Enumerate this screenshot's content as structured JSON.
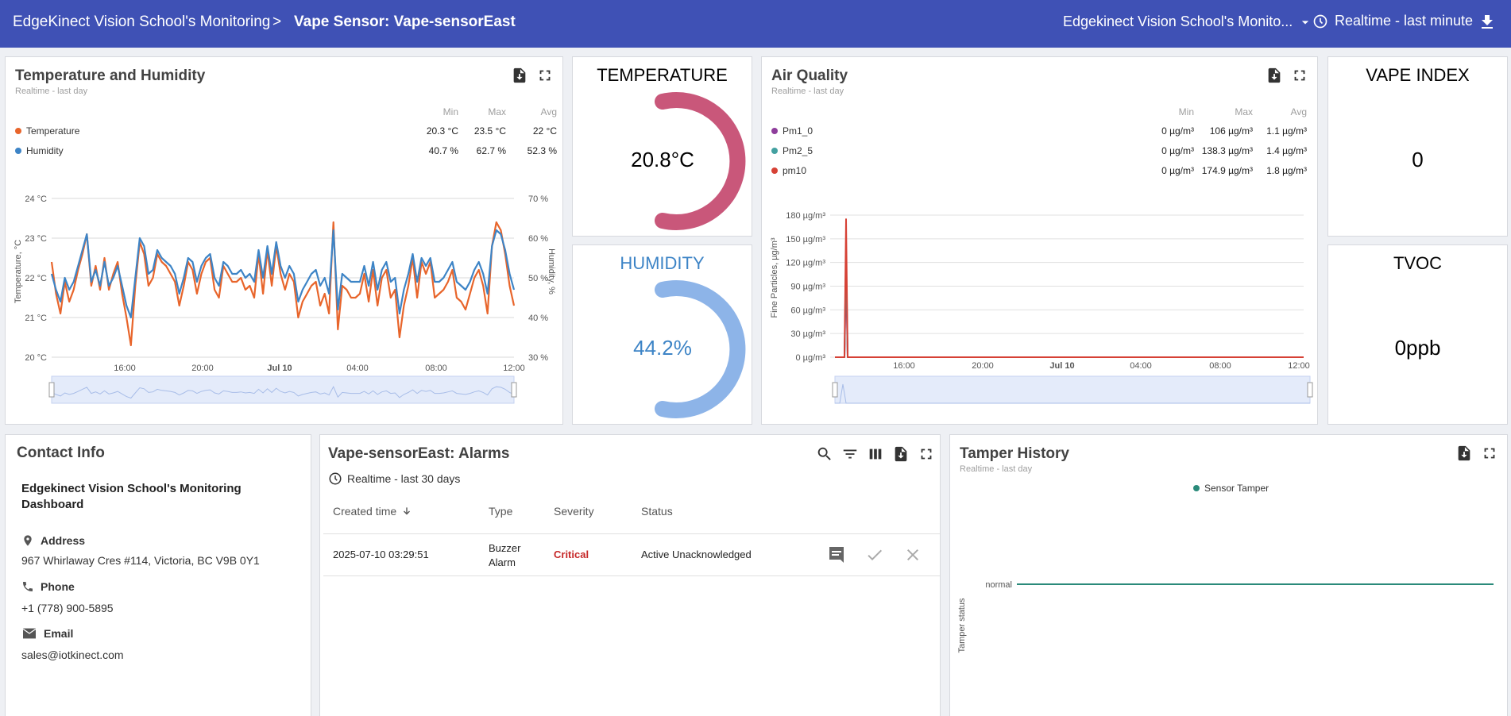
{
  "header": {
    "crumb_root": "EdgeKinect Vision School's Monitoring",
    "crumb_sep": ">",
    "crumb_current": "Vape Sensor: Vape-sensorEast",
    "dashboard_select": "Edgekinect Vision School's Monito...",
    "time_window": "Realtime - last minute"
  },
  "temp_humidity": {
    "title": "Temperature and Humidity",
    "subtitle": "Realtime - last day",
    "legend_headers": {
      "min": "Min",
      "max": "Max",
      "avg": "Avg"
    },
    "legend": [
      {
        "name": "Temperature",
        "color": "#e8652b",
        "min": "20.3 °C",
        "max": "23.5 °C",
        "avg": "22 °C"
      },
      {
        "name": "Humidity",
        "color": "#3d84c6",
        "min": "40.7 %",
        "max": "62.7 %",
        "avg": "52.3 %"
      }
    ]
  },
  "temp_gauge": {
    "title": "TEMPERATURE",
    "value": "20.8°C",
    "color": "#c9577a"
  },
  "humidity_gauge": {
    "title": "HUMIDITY",
    "value": "44.2%",
    "color": "#8db4e8",
    "title_color": "#3d84c6"
  },
  "air_quality": {
    "title": "Air Quality",
    "subtitle": "Realtime - last day",
    "legend_headers": {
      "min": "Min",
      "max": "Max",
      "avg": "Avg"
    },
    "legend": [
      {
        "name": "Pm1_0",
        "color": "#8e3d9b",
        "min": "0 µg/m³",
        "max": "106 µg/m³",
        "avg": "1.1 µg/m³"
      },
      {
        "name": "Pm2_5",
        "color": "#43a0a0",
        "min": "0 µg/m³",
        "max": "138.3 µg/m³",
        "avg": "1.4 µg/m³"
      },
      {
        "name": "pm10",
        "color": "#d64135",
        "min": "0 µg/m³",
        "max": "174.9 µg/m³",
        "avg": "1.8 µg/m³"
      }
    ]
  },
  "vape_index": {
    "title": "VAPE INDEX",
    "value": "0"
  },
  "tvoc": {
    "title": "TVOC",
    "value": "0ppb"
  },
  "contact": {
    "title": "Contact Info",
    "org": "Edgekinect Vision School's Monitoring Dashboard",
    "address_label": "Address",
    "address": "967 Whirlaway Cres #114, Victoria, BC V9B 0Y1",
    "phone_label": "Phone",
    "phone": "+1 (778) 900-5895",
    "email_label": "Email",
    "email": "sales@iotkinect.com"
  },
  "alarms": {
    "title": "Vape-sensorEast: Alarms",
    "time_window": "Realtime - last 30 days",
    "columns": {
      "created": "Created time",
      "type": "Type",
      "severity": "Severity",
      "status": "Status"
    },
    "rows": [
      {
        "created": "2025-07-10 03:29:51",
        "type_line1": "Buzzer",
        "type_line2": "Alarm",
        "severity": "Critical",
        "status": "Active Unacknowledged"
      }
    ]
  },
  "tamper": {
    "title": "Tamper History",
    "subtitle": "Realtime - last day",
    "legend": "Sensor Tamper",
    "legend_color": "#2a8a7a",
    "y_label": "Tamper status",
    "y_tick": "normal"
  },
  "chart_data": [
    {
      "type": "line",
      "title": "Temperature and Humidity",
      "x_ticks": [
        "16:00",
        "20:00",
        "Jul 10",
        "04:00",
        "08:00",
        "12:00"
      ],
      "ylabel": "Temperature, °C",
      "ylabel_right": "Humidity, %",
      "y_ticks": [
        "24 °C",
        "23 °C",
        "22 °C",
        "21 °C",
        "20 °C"
      ],
      "y_ticks_right": [
        "70 %",
        "60 %",
        "50 %",
        "40 %",
        "30 %"
      ],
      "ylim": [
        20,
        24
      ],
      "ylim_right": [
        30,
        70
      ],
      "series": [
        {
          "name": "Temperature",
          "color": "#e8652b",
          "axis": "left",
          "values": [
            22.4,
            21.6,
            21.1,
            21.9,
            21.4,
            21.7,
            22.2,
            22.6,
            23.1,
            21.8,
            22.3,
            21.7,
            22.5,
            21.7,
            22.1,
            22.4,
            21.6,
            21.0,
            20.3,
            21.8,
            22.9,
            22.6,
            21.8,
            22.0,
            22.6,
            22.4,
            22.3,
            22.1,
            21.9,
            21.3,
            21.8,
            22.4,
            22.2,
            21.6,
            22.1,
            22.4,
            22.5,
            21.7,
            21.5,
            22.3,
            22.1,
            21.9,
            21.9,
            22.0,
            21.7,
            21.8,
            21.5,
            22.6,
            21.6,
            22.7,
            21.8,
            22.8,
            22.1,
            21.7,
            22.1,
            21.9,
            21.0,
            21.4,
            21.6,
            21.8,
            21.9,
            21.3,
            21.6,
            21.1,
            23.4,
            20.7,
            21.8,
            21.7,
            21.5,
            21.5,
            21.6,
            22.1,
            21.4,
            22.2,
            21.3,
            22.0,
            22.2,
            21.5,
            21.7,
            20.5,
            21.3,
            21.8,
            22.5,
            21.5,
            22.4,
            22.1,
            22.4,
            21.5,
            21.6,
            21.7,
            21.9,
            22.2,
            21.5,
            21.4,
            21.2,
            21.6,
            22.0,
            22.2,
            21.8,
            21.1,
            22.8,
            23.4,
            23.2,
            22.6,
            21.8,
            21.3
          ]
        },
        {
          "name": "Humidity",
          "color": "#3d84c6",
          "axis": "right",
          "values": [
            51,
            47,
            44,
            50,
            47,
            49,
            53,
            57,
            61,
            49,
            52,
            48,
            54,
            48,
            50,
            53,
            48,
            43,
            40,
            50,
            60,
            58,
            51,
            52,
            57,
            55,
            54,
            53,
            51,
            46,
            50,
            55,
            54,
            49,
            53,
            55,
            56,
            50,
            48,
            54,
            53,
            51,
            51,
            52,
            50,
            51,
            49,
            57,
            50,
            58,
            51,
            59,
            53,
            50,
            53,
            51,
            44,
            47,
            49,
            51,
            52,
            48,
            50,
            46,
            62,
            42,
            51,
            50,
            49,
            49,
            49,
            53,
            48,
            54,
            47,
            52,
            54,
            49,
            50,
            41,
            47,
            51,
            56,
            49,
            55,
            53,
            55,
            49,
            49,
            50,
            52,
            54,
            49,
            48,
            47,
            49,
            52,
            54,
            51,
            46,
            58,
            62,
            61,
            57,
            51,
            47
          ]
        }
      ]
    },
    {
      "type": "line",
      "title": "Air Quality",
      "x_ticks": [
        "16:00",
        "20:00",
        "Jul 10",
        "04:00",
        "08:00",
        "12:00"
      ],
      "ylabel": "Fine Particles, µg/m³",
      "y_ticks": [
        "180 µg/m³",
        "150 µg/m³",
        "120 µg/m³",
        "90 µg/m³",
        "60 µg/m³",
        "30 µg/m³",
        "0 µg/m³"
      ],
      "ylim": [
        0,
        180
      ],
      "series": [
        {
          "name": "Pm1_0",
          "color": "#8e3d9b",
          "values": [
            0,
            0,
            0,
            106,
            0,
            0,
            0,
            0,
            0,
            0
          ]
        },
        {
          "name": "Pm2_5",
          "color": "#43a0a0",
          "values": [
            0,
            0,
            0,
            138.3,
            0,
            0,
            0,
            0,
            0,
            0
          ]
        },
        {
          "name": "pm10",
          "color": "#d64135",
          "values": [
            0,
            0,
            0,
            174.9,
            0,
            0,
            0,
            0,
            0,
            0
          ]
        }
      ]
    },
    {
      "type": "line",
      "title": "Tamper History",
      "ylabel": "Tamper status",
      "y_ticks": [
        "normal"
      ],
      "series": [
        {
          "name": "Sensor Tamper",
          "color": "#2a8a7a",
          "values": [
            "normal",
            "normal"
          ]
        }
      ]
    }
  ]
}
